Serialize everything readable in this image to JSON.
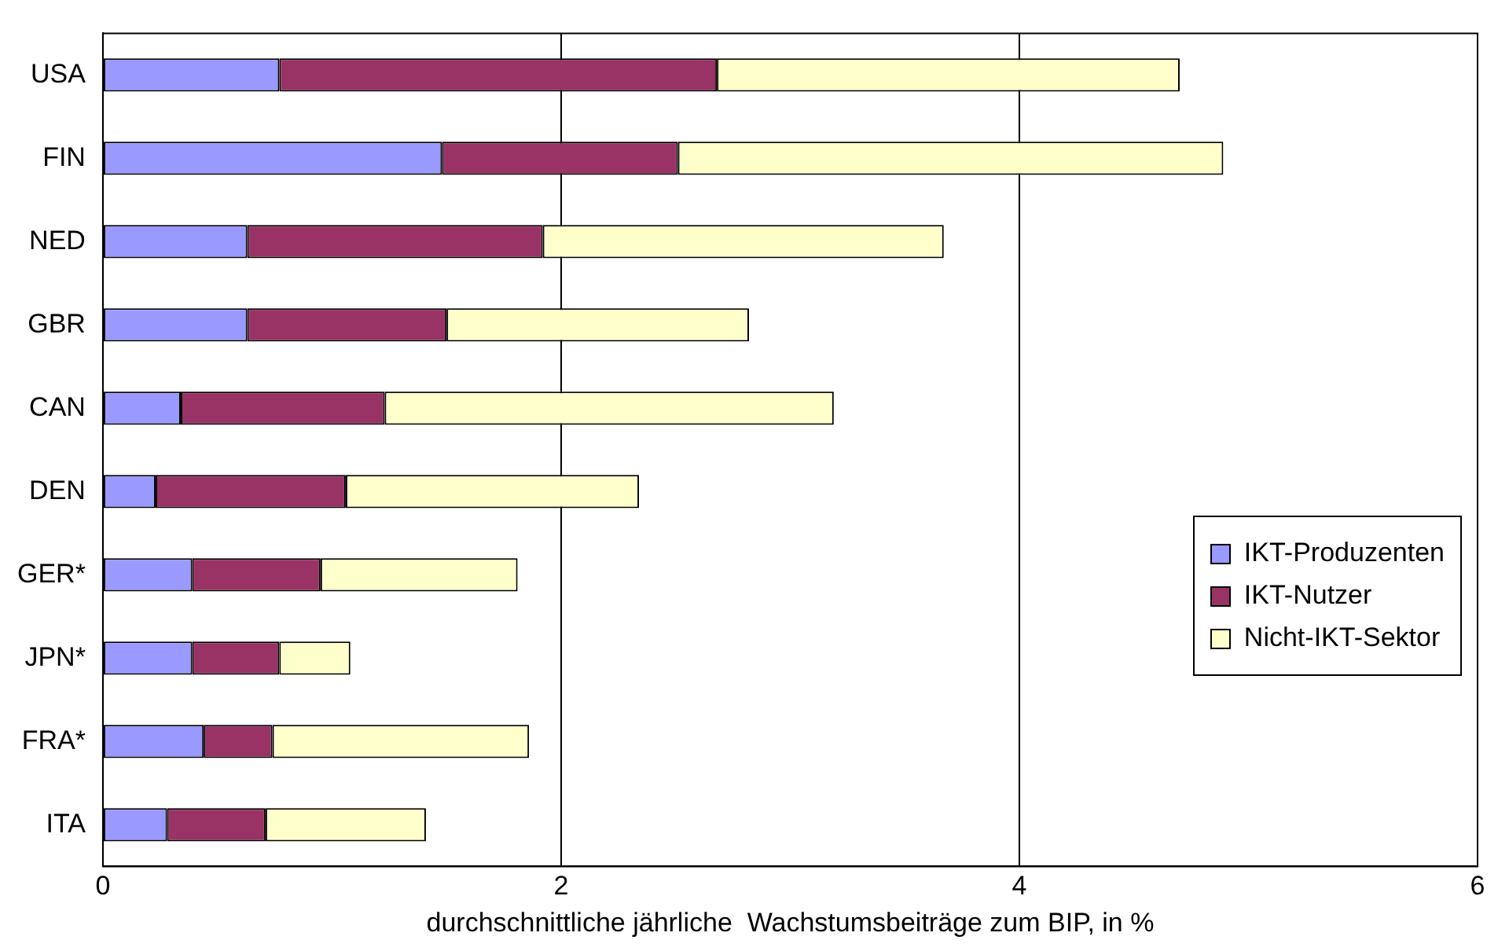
{
  "chart_data": {
    "type": "bar",
    "orientation": "horizontal",
    "stacked": true,
    "xlabel": "durchschnittliche jährliche  Wachstumsbeiträge zum BIP, in %",
    "categories": [
      "USA",
      "FIN",
      "NED",
      "GBR",
      "CAN",
      "DEN",
      "GER*",
      "JPN*",
      "FRA*",
      "ITA"
    ],
    "series": [
      {
        "name": "IKT-Produzenten",
        "color": "#9999ff",
        "values": [
          0.77,
          1.48,
          0.63,
          0.63,
          0.34,
          0.23,
          0.39,
          0.39,
          0.44,
          0.28
        ]
      },
      {
        "name": "IKT-Nutzer",
        "color": "#993366",
        "values": [
          1.91,
          1.03,
          1.29,
          0.87,
          0.89,
          0.83,
          0.56,
          0.38,
          0.3,
          0.43
        ]
      },
      {
        "name": "Nicht-IKT-Sektor",
        "color": "#ffffcc",
        "values": [
          2.02,
          2.38,
          1.75,
          1.32,
          1.96,
          1.28,
          0.86,
          0.31,
          1.12,
          0.7
        ]
      }
    ],
    "xlim": [
      0,
      6
    ],
    "xticks": [
      0,
      2,
      4,
      6
    ],
    "grid": "x",
    "legend": "right"
  }
}
